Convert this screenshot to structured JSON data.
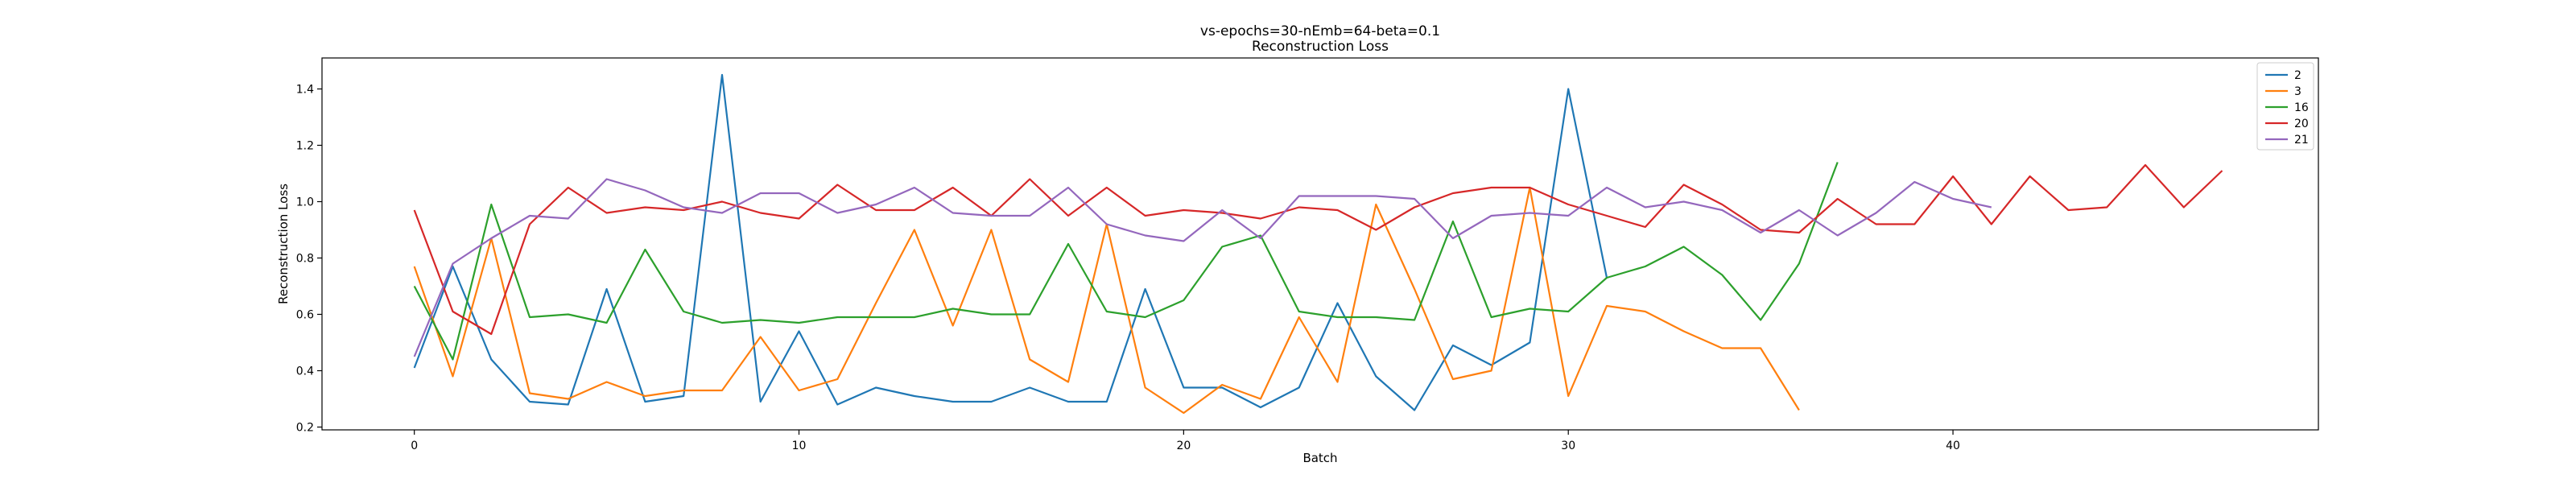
{
  "chart_data": {
    "type": "line",
    "title": "vs-epochs=30-nEmb=64-beta=0.1",
    "subtitle": "Reconstruction Loss",
    "xlabel": "Batch",
    "ylabel": "Reconstruction Loss",
    "xlim": [
      -2.4,
      49.5
    ],
    "ylim": [
      0.19,
      1.51
    ],
    "xticks": [
      0,
      10,
      20,
      30,
      40
    ],
    "yticks": [
      0.2,
      0.4,
      0.6,
      0.8,
      1.0,
      1.2,
      1.4
    ],
    "grid": false,
    "legend_position": "top-right",
    "series": [
      {
        "name": "2",
        "color": "#1f77b4",
        "values": [
          0.41,
          0.77,
          0.44,
          0.29,
          0.28,
          0.69,
          0.29,
          0.31,
          1.45,
          0.29,
          0.54,
          0.28,
          0.34,
          0.31,
          0.29,
          0.29,
          0.34,
          0.29,
          0.29,
          0.69,
          0.34,
          0.34,
          0.27,
          0.34,
          0.64,
          0.38,
          0.26,
          0.49,
          0.42,
          0.5,
          1.4,
          0.73
        ]
      },
      {
        "name": "3",
        "color": "#ff7f0e",
        "values": [
          0.77,
          0.38,
          0.87,
          0.32,
          0.3,
          0.36,
          0.31,
          0.33,
          0.33,
          0.52,
          0.33,
          0.37,
          0.64,
          0.9,
          0.56,
          0.9,
          0.44,
          0.36,
          0.92,
          0.34,
          0.25,
          0.35,
          0.3,
          0.59,
          0.36,
          0.99,
          0.69,
          0.37,
          0.4,
          1.05,
          0.31,
          0.63,
          0.61,
          0.54,
          0.48,
          0.48,
          0.26
        ]
      },
      {
        "name": "16",
        "color": "#2ca02c",
        "values": [
          0.7,
          0.44,
          0.99,
          0.59,
          0.6,
          0.57,
          0.83,
          0.61,
          0.57,
          0.58,
          0.57,
          0.59,
          0.59,
          0.59,
          0.62,
          0.6,
          0.6,
          0.85,
          0.61,
          0.59,
          0.65,
          0.84,
          0.88,
          0.61,
          0.59,
          0.59,
          0.58,
          0.93,
          0.59,
          0.62,
          0.61,
          0.73,
          0.77,
          0.84,
          0.74,
          0.58,
          0.78,
          1.14
        ]
      },
      {
        "name": "20",
        "color": "#d62728",
        "values": [
          0.97,
          0.61,
          0.53,
          0.92,
          1.05,
          0.96,
          0.98,
          0.97,
          1.0,
          0.96,
          0.94,
          1.06,
          0.97,
          0.97,
          1.05,
          0.95,
          1.08,
          0.95,
          1.05,
          0.95,
          0.97,
          0.96,
          0.94,
          0.98,
          0.97,
          0.9,
          0.98,
          1.03,
          1.05,
          1.05,
          0.99,
          0.95,
          0.91,
          1.06,
          0.99,
          0.9,
          0.89,
          1.01,
          0.92,
          0.92,
          1.09,
          0.92,
          1.09,
          0.97,
          0.98,
          1.13,
          0.98,
          1.11
        ]
      },
      {
        "name": "21",
        "color": "#9467bd",
        "values": [
          0.45,
          0.78,
          0.87,
          0.95,
          0.94,
          1.08,
          1.04,
          0.98,
          0.96,
          1.03,
          1.03,
          0.96,
          0.99,
          1.05,
          0.96,
          0.95,
          0.95,
          1.05,
          0.92,
          0.88,
          0.86,
          0.97,
          0.87,
          1.02,
          1.02,
          1.02,
          1.01,
          0.87,
          0.95,
          0.96,
          0.95,
          1.05,
          0.98,
          1.0,
          0.97,
          0.89,
          0.97,
          0.88,
          0.96,
          1.07,
          1.01,
          0.98
        ]
      }
    ]
  }
}
